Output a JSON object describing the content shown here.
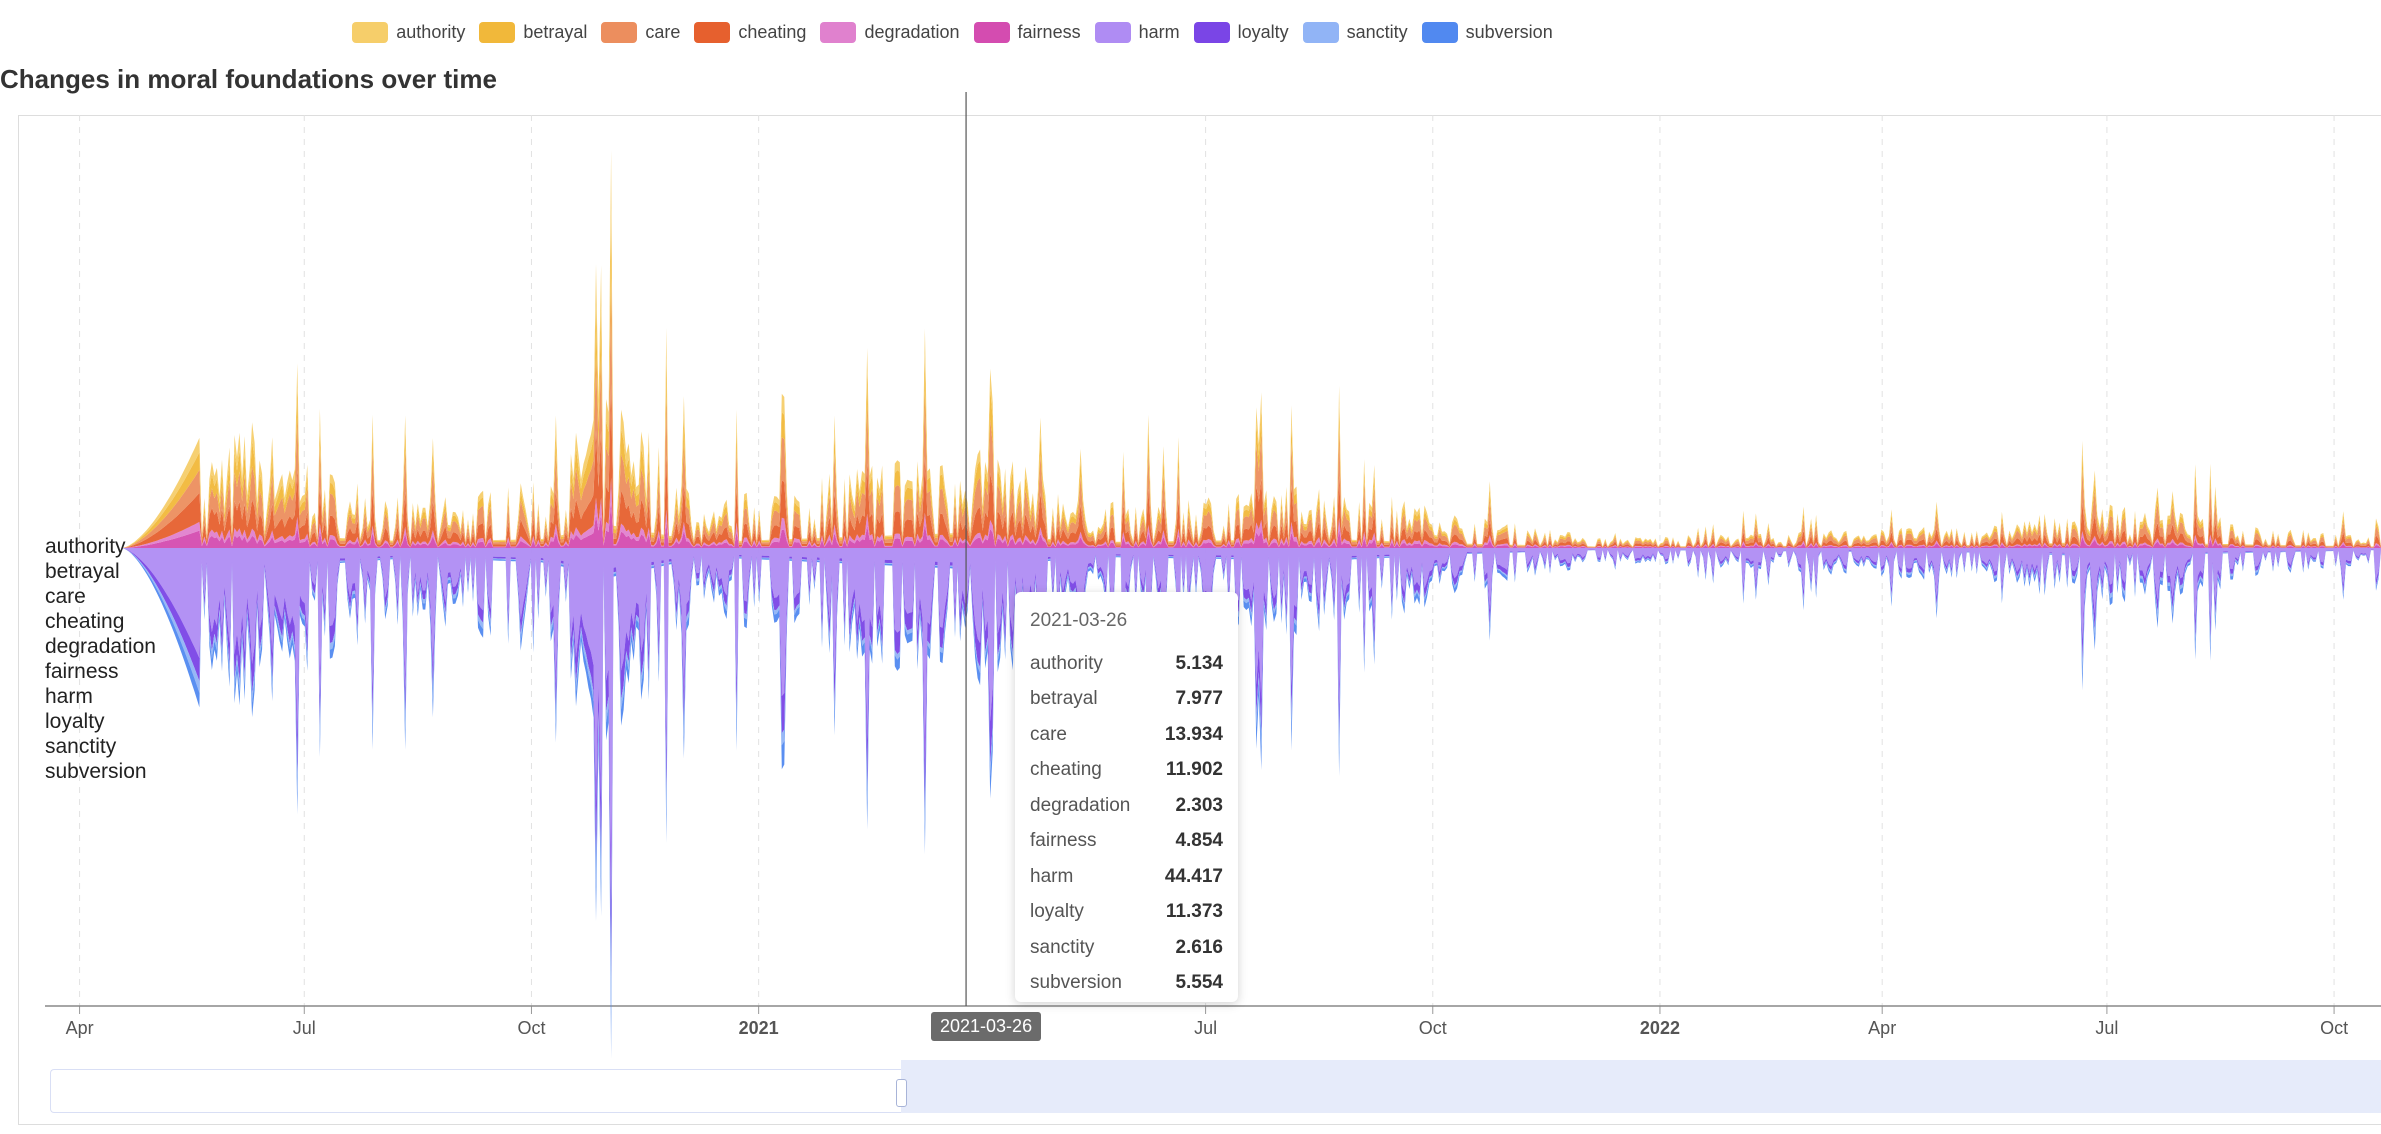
{
  "title": "Changes in moral foundations over time",
  "legend": [
    {
      "name": "authority",
      "color": "#F6CE6A"
    },
    {
      "name": "betrayal",
      "color": "#F1B83A"
    },
    {
      "name": "care",
      "color": "#EC8E5E"
    },
    {
      "name": "cheating",
      "color": "#E6602E"
    },
    {
      "name": "degradation",
      "color": "#E081CE"
    },
    {
      "name": "fairness",
      "color": "#D44CB0"
    },
    {
      "name": "harm",
      "color": "#AF8CF3"
    },
    {
      "name": "loyalty",
      "color": "#7A45E6"
    },
    {
      "name": "sanctity",
      "color": "#91B4F6"
    },
    {
      "name": "subversion",
      "color": "#5189F0"
    }
  ],
  "tooltip": {
    "date": "2021-03-26",
    "rows": [
      {
        "name": "authority",
        "value": "5.134"
      },
      {
        "name": "betrayal",
        "value": "7.977"
      },
      {
        "name": "care",
        "value": "13.934"
      },
      {
        "name": "cheating",
        "value": "11.902"
      },
      {
        "name": "degradation",
        "value": "2.303"
      },
      {
        "name": "fairness",
        "value": "4.854"
      },
      {
        "name": "harm",
        "value": "44.417"
      },
      {
        "name": "loyalty",
        "value": "11.373"
      },
      {
        "name": "sanctity",
        "value": "2.616"
      },
      {
        "name": "subversion",
        "value": "5.554"
      }
    ]
  },
  "crosshair_label": "2021-03-26",
  "chart_data": {
    "type": "area",
    "subtype": "streamgraph",
    "title": "Changes in moral foundations over time",
    "xlabel": "",
    "ylabel": "",
    "x_ticks": [
      {
        "label": "Apr",
        "date": "2020-04-01",
        "bold": false
      },
      {
        "label": "Jul",
        "date": "2020-07-01",
        "bold": false
      },
      {
        "label": "Oct",
        "date": "2020-10-01",
        "bold": false
      },
      {
        "label": "2021",
        "date": "2021-01-01",
        "bold": true
      },
      {
        "label": "Jul",
        "date": "2021-07-01",
        "bold": false
      },
      {
        "label": "Oct",
        "date": "2021-10-01",
        "bold": false
      },
      {
        "label": "2022",
        "date": "2022-01-01",
        "bold": true
      },
      {
        "label": "Apr",
        "date": "2022-04-01",
        "bold": false
      },
      {
        "label": "Jul",
        "date": "2022-07-01",
        "bold": false
      },
      {
        "label": "Oct",
        "date": "2022-10-01",
        "bold": false
      }
    ],
    "x_range": [
      "2020-03-18",
      "2022-10-20"
    ],
    "grid": "vertical-dashed",
    "legend_position": "top",
    "series": [
      {
        "name": "authority",
        "color": "#F6CE6A"
      },
      {
        "name": "betrayal",
        "color": "#F1B83A"
      },
      {
        "name": "care",
        "color": "#EC8E5E"
      },
      {
        "name": "cheating",
        "color": "#E6602E"
      },
      {
        "name": "degradation",
        "color": "#E081CE"
      },
      {
        "name": "fairness",
        "color": "#D44CB0"
      },
      {
        "name": "harm",
        "color": "#AF8CF3"
      },
      {
        "name": "loyalty",
        "color": "#7A45E6"
      },
      {
        "name": "sanctity",
        "color": "#91B4F6"
      },
      {
        "name": "subversion",
        "color": "#5189F0"
      }
    ],
    "points": [
      {
        "date": "2020-05-20",
        "values": [
          5,
          6,
          8,
          10,
          3,
          6,
          38,
          8,
          4,
          5
        ]
      },
      {
        "date": "2020-06-10",
        "values": [
          8,
          10,
          14,
          12,
          3,
          5,
          48,
          12,
          4,
          6
        ]
      },
      {
        "date": "2020-07-05",
        "values": [
          4,
          5,
          10,
          9,
          2,
          4,
          36,
          8,
          3,
          4
        ]
      },
      {
        "date": "2020-08-15",
        "values": [
          2,
          3,
          6,
          5,
          1,
          2,
          20,
          4,
          2,
          3
        ]
      },
      {
        "date": "2020-10-05",
        "values": [
          3,
          4,
          8,
          7,
          2,
          3,
          30,
          6,
          3,
          4
        ]
      },
      {
        "date": "2020-11-03",
        "values": [
          10,
          12,
          18,
          16,
          4,
          8,
          60,
          14,
          5,
          8
        ]
      },
      {
        "date": "2020-12-10",
        "values": [
          2,
          3,
          5,
          5,
          1,
          2,
          18,
          4,
          2,
          3
        ]
      },
      {
        "date": "2021-01-06",
        "values": [
          3,
          4,
          7,
          6,
          2,
          3,
          24,
          6,
          2,
          4
        ]
      },
      {
        "date": "2021-03-26",
        "values": [
          5.134,
          7.977,
          13.934,
          11.902,
          2.303,
          4.854,
          44.417,
          11.373,
          2.616,
          5.554
        ]
      },
      {
        "date": "2021-05-15",
        "values": [
          2,
          3,
          5,
          5,
          1,
          2,
          18,
          4,
          2,
          3
        ]
      },
      {
        "date": "2021-08-20",
        "values": [
          3,
          4,
          8,
          7,
          2,
          3,
          26,
          6,
          2,
          4
        ]
      },
      {
        "date": "2021-10-15",
        "values": [
          1.5,
          2,
          4,
          3,
          1,
          1.5,
          12,
          3,
          1,
          2
        ]
      },
      {
        "date": "2021-12-10",
        "values": [
          0.5,
          0.7,
          1,
          1,
          0.3,
          0.5,
          4,
          1,
          0.3,
          0.5
        ]
      },
      {
        "date": "2022-05-20",
        "values": [
          1,
          1.5,
          3,
          2.5,
          0.5,
          1,
          10,
          2,
          1,
          1.5
        ]
      },
      {
        "date": "2022-06-25",
        "values": [
          2,
          3,
          6,
          5,
          1,
          2,
          16,
          4,
          2,
          3
        ]
      },
      {
        "date": "2022-10-15",
        "values": [
          0.5,
          0.7,
          1.5,
          1.2,
          0.3,
          0.5,
          5,
          1,
          0.3,
          0.5
        ]
      }
    ]
  }
}
